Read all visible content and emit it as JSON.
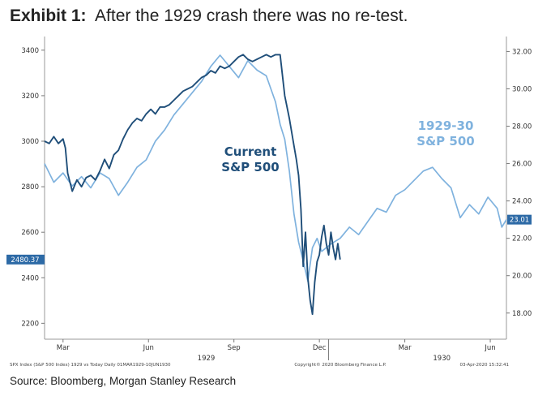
{
  "title": {
    "prefix": "Exhibit 1:",
    "text": "After the 1929 crash there was no re-test."
  },
  "source": "Source: Bloomberg, Morgan Stanley Research",
  "colors": {
    "current": "#1f4e79",
    "hist_1929": "#7fb2de",
    "current_label": "#1f4e79",
    "hist_label": "#7fb2de",
    "last_tag_left": "#2d6aa6",
    "last_tag_right": "#2d6aa6"
  },
  "footer": {
    "left": "SPX Index (S&P 500 Index) 1929 vs Today  Daily 01MAR1929-10JUN1930",
    "center": "Copyright© 2020 Bloomberg Finance L.P.",
    "right": "03-Apr-2020 15:32:41"
  },
  "chart_data": {
    "type": "line",
    "x_ticks": [
      "Mar",
      "Jun",
      "Sep",
      "Dec",
      "Mar",
      "Jun"
    ],
    "x_year_labels": [
      "1929",
      "1930"
    ],
    "left_axis": {
      "ticks": [
        2200,
        2400,
        2600,
        2800,
        3000,
        3200,
        3400
      ],
      "ylim": [
        2130,
        3460
      ]
    },
    "right_axis": {
      "ticks": [
        "18.00",
        "20.00",
        "22.00",
        "24.00",
        "26.00",
        "28.00",
        "30.00",
        "32.00"
      ],
      "ylim": [
        16.6,
        32.8
      ]
    },
    "series": [
      {
        "name": "Current S&P 500",
        "label_lines": [
          "Current",
          "S&P 500"
        ],
        "axis": "left",
        "last_value_label": "2480.37",
        "x": [
          0,
          0.01,
          0.02,
          0.03,
          0.04,
          0.045,
          0.05,
          0.06,
          0.07,
          0.08,
          0.09,
          0.1,
          0.11,
          0.12,
          0.13,
          0.14,
          0.15,
          0.16,
          0.17,
          0.18,
          0.19,
          0.2,
          0.21,
          0.22,
          0.23,
          0.24,
          0.25,
          0.26,
          0.27,
          0.28,
          0.29,
          0.3,
          0.31,
          0.32,
          0.33,
          0.34,
          0.35,
          0.36,
          0.37,
          0.38,
          0.39,
          0.4,
          0.41,
          0.42,
          0.43,
          0.44,
          0.45,
          0.46,
          0.47,
          0.48,
          0.49,
          0.5,
          0.51,
          0.52,
          0.53,
          0.54,
          0.545,
          0.55,
          0.555,
          0.56,
          0.565,
          0.57,
          0.575,
          0.58,
          0.585,
          0.59,
          0.595,
          0.6,
          0.605,
          0.61,
          0.615,
          0.62,
          0.625,
          0.63,
          0.635,
          0.64
        ],
        "values": [
          3000,
          2990,
          3020,
          2990,
          3010,
          2970,
          2860,
          2780,
          2830,
          2800,
          2840,
          2850,
          2830,
          2870,
          2920,
          2880,
          2940,
          2960,
          3010,
          3050,
          3080,
          3100,
          3090,
          3120,
          3140,
          3120,
          3150,
          3150,
          3160,
          3180,
          3200,
          3220,
          3230,
          3240,
          3260,
          3280,
          3290,
          3310,
          3300,
          3330,
          3320,
          3330,
          3350,
          3370,
          3380,
          3360,
          3350,
          3360,
          3370,
          3380,
          3370,
          3380,
          3380,
          3200,
          3100,
          2980,
          2920,
          2850,
          2700,
          2450,
          2600,
          2400,
          2300,
          2240,
          2380,
          2470,
          2500,
          2580,
          2630,
          2550,
          2500,
          2600,
          2530,
          2480,
          2550,
          2480
        ]
      },
      {
        "name": "1929-30 S&P 500",
        "label_lines": [
          "1929-30",
          "S&P 500"
        ],
        "axis": "right",
        "last_value_label": "23.01",
        "x": [
          0,
          0.02,
          0.04,
          0.06,
          0.08,
          0.1,
          0.12,
          0.14,
          0.16,
          0.18,
          0.2,
          0.22,
          0.24,
          0.26,
          0.28,
          0.3,
          0.32,
          0.34,
          0.36,
          0.38,
          0.4,
          0.42,
          0.44,
          0.46,
          0.48,
          0.5,
          0.51,
          0.52,
          0.53,
          0.54,
          0.55,
          0.56,
          0.57,
          0.58,
          0.59,
          0.6,
          0.62,
          0.64,
          0.66,
          0.68,
          0.7,
          0.72,
          0.74,
          0.76,
          0.78,
          0.8,
          0.82,
          0.84,
          0.86,
          0.88,
          0.9,
          0.92,
          0.94,
          0.96,
          0.98,
          0.99,
          1
        ],
        "values": [
          26.0,
          25.0,
          25.5,
          24.8,
          25.3,
          24.7,
          25.5,
          25.2,
          24.3,
          25.0,
          25.8,
          26.2,
          27.2,
          27.8,
          28.6,
          29.2,
          29.8,
          30.4,
          31.2,
          31.8,
          31.2,
          30.6,
          31.5,
          31.0,
          30.7,
          29.3,
          28.1,
          27.3,
          25.6,
          23.3,
          21.8,
          20.8,
          19.7,
          21.5,
          22.0,
          21.3,
          21.7,
          22.0,
          22.6,
          22.2,
          22.9,
          23.6,
          23.4,
          24.3,
          24.6,
          25.1,
          25.6,
          25.8,
          25.2,
          24.7,
          23.1,
          23.8,
          23.3,
          24.2,
          23.6,
          22.6,
          23.0
        ]
      }
    ],
    "grid": false
  }
}
